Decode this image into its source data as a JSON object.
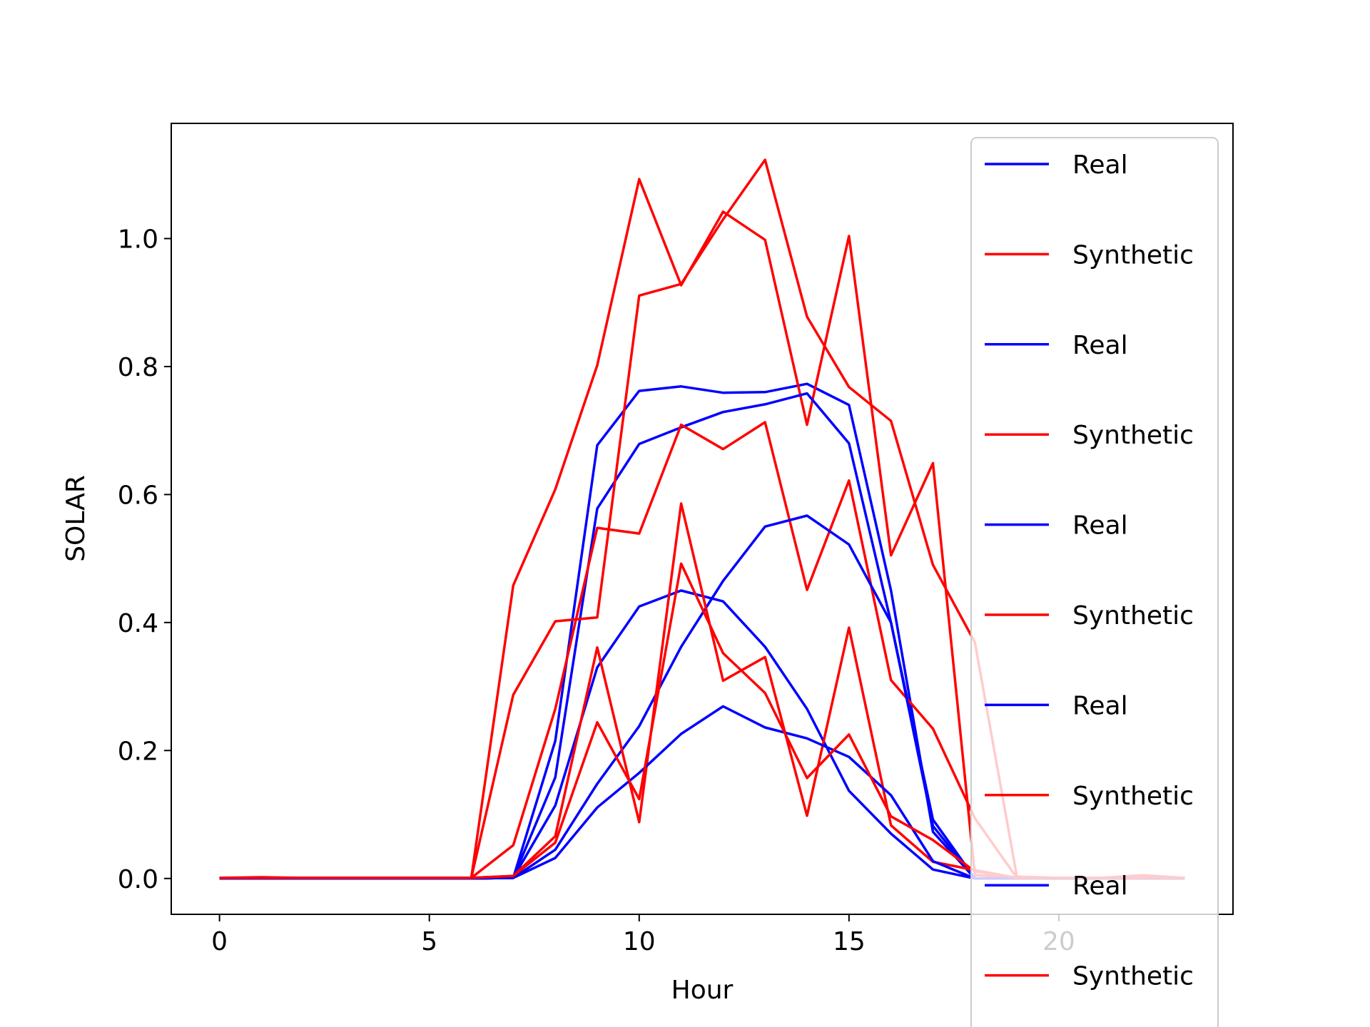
{
  "chart_data": {
    "type": "line",
    "title": "",
    "xlabel": "Hour",
    "ylabel": "SOLAR",
    "xlim": [
      -1.15,
      24.15
    ],
    "ylim": [
      -0.056,
      1.18
    ],
    "xticks": [
      0,
      5,
      10,
      15,
      20
    ],
    "yticks": [
      0.0,
      0.2,
      0.4,
      0.6,
      0.8,
      1.0
    ],
    "xtick_labels": [
      "0",
      "5",
      "10",
      "15",
      "20"
    ],
    "ytick_labels": [
      "0.0",
      "0.2",
      "0.4",
      "0.6",
      "0.8",
      "1.0"
    ],
    "grid": false,
    "legend_position": "upper-right",
    "colors": {
      "Real": "#0000ff",
      "Synthetic": "#ff0000"
    },
    "x": [
      0,
      1,
      2,
      3,
      4,
      5,
      6,
      7,
      8,
      9,
      10,
      11,
      12,
      13,
      14,
      15,
      16,
      17,
      18,
      19,
      20,
      21,
      22,
      23
    ],
    "series": [
      {
        "name": "Real",
        "color": "#0000ff",
        "values": [
          0,
          0,
          0,
          0,
          0,
          0,
          0,
          0.001,
          0.215,
          0.677,
          0.762,
          0.769,
          0.759,
          0.76,
          0.773,
          0.74,
          0.45,
          0.073,
          0,
          0,
          0,
          0,
          0,
          0
        ]
      },
      {
        "name": "Synthetic",
        "color": "#ff0000",
        "values": [
          0.001,
          0.002,
          0.001,
          0.001,
          0.001,
          0.001,
          0.001,
          0.458,
          0.608,
          0.802,
          1.093,
          0.927,
          1.042,
          0.998,
          0.709,
          1.004,
          0.505,
          0.649,
          0.005,
          0.002,
          0.001,
          0.001,
          0.003,
          0.001
        ]
      },
      {
        "name": "Real",
        "color": "#0000ff",
        "values": [
          0,
          0,
          0,
          0,
          0,
          0,
          0,
          0.001,
          0.158,
          0.578,
          0.679,
          0.705,
          0.729,
          0.741,
          0.758,
          0.68,
          0.4,
          0.092,
          0,
          0,
          0,
          0,
          0,
          0
        ]
      },
      {
        "name": "Synthetic",
        "color": "#ff0000",
        "values": [
          0.001,
          0.001,
          0.001,
          0.001,
          0.001,
          0.001,
          0.001,
          0.287,
          0.402,
          0.408,
          0.911,
          0.929,
          1.03,
          1.123,
          0.878,
          0.768,
          0.715,
          0.49,
          0.369,
          0.003,
          0.001,
          0.001,
          0.005,
          0.001
        ]
      },
      {
        "name": "Real",
        "color": "#0000ff",
        "values": [
          0,
          0,
          0,
          0,
          0,
          0,
          0,
          0.001,
          0.114,
          0.33,
          0.425,
          0.45,
          0.433,
          0.362,
          0.265,
          0.137,
          0.07,
          0.014,
          0,
          0,
          0,
          0,
          0,
          0
        ]
      },
      {
        "name": "Synthetic",
        "color": "#ff0000",
        "values": [
          0.001,
          0.001,
          0.001,
          0.001,
          0.001,
          0.001,
          0.001,
          0.052,
          0.265,
          0.548,
          0.539,
          0.709,
          0.671,
          0.713,
          0.451,
          0.622,
          0.31,
          0.234,
          0.094,
          0.001,
          0.001,
          0.001,
          0.001,
          0.001
        ]
      },
      {
        "name": "Real",
        "color": "#0000ff",
        "values": [
          0,
          0,
          0,
          0,
          0,
          0,
          0,
          0.001,
          0.045,
          0.148,
          0.238,
          0.362,
          0.465,
          0.55,
          0.567,
          0.522,
          0.4,
          0.082,
          0,
          0,
          0,
          0,
          0,
          0
        ]
      },
      {
        "name": "Synthetic",
        "color": "#ff0000",
        "values": [
          0.001,
          0.001,
          0.001,
          0.001,
          0.001,
          0.001,
          0.001,
          0.004,
          0.066,
          0.361,
          0.088,
          0.586,
          0.309,
          0.346,
          0.098,
          0.392,
          0.083,
          0.026,
          0.013,
          0.001,
          0.001,
          0.001,
          0.001,
          0.001
        ]
      },
      {
        "name": "Real",
        "color": "#0000ff",
        "values": [
          0,
          0,
          0,
          0,
          0,
          0,
          0,
          0.001,
          0.032,
          0.111,
          0.165,
          0.226,
          0.269,
          0.236,
          0.219,
          0.19,
          0.13,
          0.027,
          0,
          0,
          0,
          0,
          0,
          0
        ]
      },
      {
        "name": "Synthetic",
        "color": "#ff0000",
        "values": [
          0.001,
          0.001,
          0.001,
          0.001,
          0.001,
          0.001,
          0.001,
          0.004,
          0.056,
          0.244,
          0.124,
          0.492,
          0.352,
          0.29,
          0.157,
          0.225,
          0.097,
          0.06,
          0.011,
          0.001,
          0.001,
          0.001,
          0.001,
          0.001
        ]
      }
    ]
  }
}
